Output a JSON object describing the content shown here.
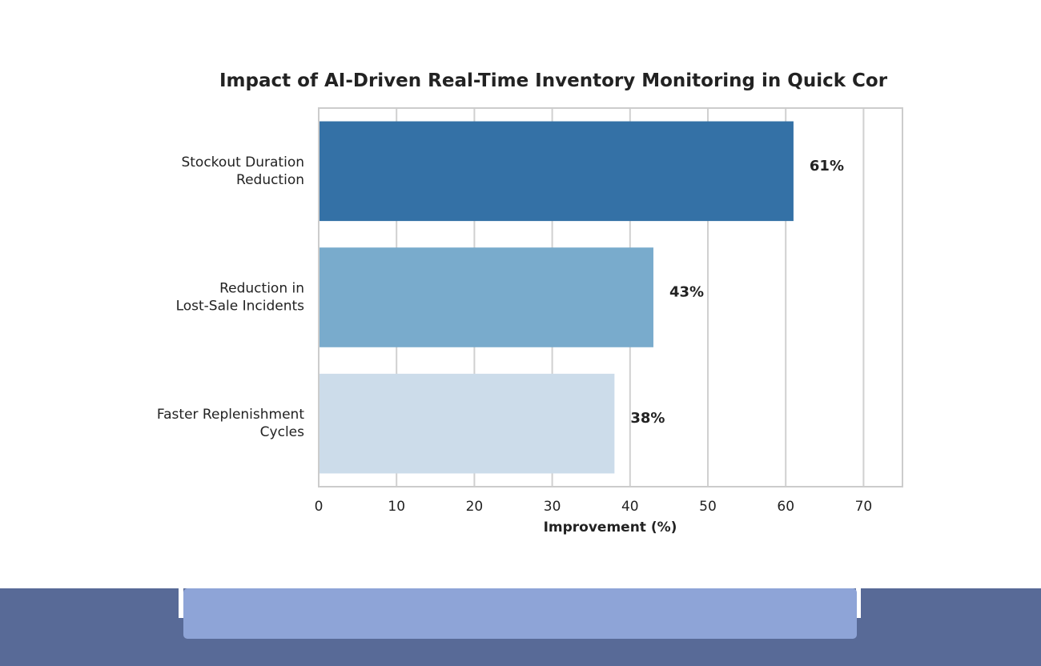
{
  "chart_data": {
    "type": "bar",
    "orientation": "horizontal",
    "title": "Impact of AI-Driven Real-Time Inventory Monitoring in Quick Cor",
    "xlabel": "Improvement (%)",
    "ylabel": "",
    "xlim": [
      0,
      75
    ],
    "xticks": [
      0,
      10,
      20,
      30,
      40,
      50,
      60,
      70
    ],
    "grid": "vertical",
    "categories": [
      [
        "Stockout Duration",
        "Reduction"
      ],
      [
        "Reduction in",
        "Lost-Sale Incidents"
      ],
      [
        "Faster Replenishment",
        "Cycles"
      ]
    ],
    "values": [
      61,
      43,
      38
    ],
    "value_labels": [
      "61%",
      "43%",
      "38%"
    ],
    "colors": [
      "#3471a6",
      "#79abcc",
      "#ccdcea"
    ]
  },
  "colors": {
    "grid": "#d0d0d0",
    "frame": "#cccccc",
    "text": "#222222",
    "footer_dark": "#586a97",
    "footer_light": "#8ea4d7"
  }
}
